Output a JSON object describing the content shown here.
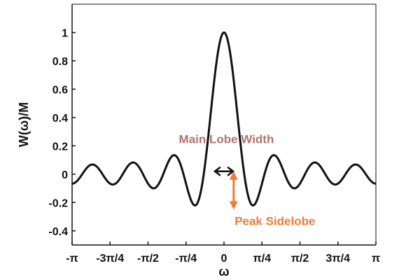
{
  "chart_data": {
    "type": "line",
    "title": "",
    "xlabel": "ω",
    "ylabel": "W(ω)/M",
    "xlim": [
      -3.14159,
      3.14159
    ],
    "ylim": [
      -0.5,
      1.2
    ],
    "x_ticks": [
      {
        "value": -3.14159,
        "label": "-π"
      },
      {
        "value": -2.35619,
        "label": "-3π/4"
      },
      {
        "value": -1.5708,
        "label": "-π/2"
      },
      {
        "value": -0.7854,
        "label": "-π/4"
      },
      {
        "value": 0,
        "label": "0"
      },
      {
        "value": 0.7854,
        "label": "π/4"
      },
      {
        "value": 1.5708,
        "label": "π/2"
      },
      {
        "value": 2.35619,
        "label": "3π/4"
      },
      {
        "value": 3.14159,
        "label": "π"
      }
    ],
    "y_ticks": [
      {
        "value": 1,
        "label": "1"
      },
      {
        "value": 0.8,
        "label": "0.8"
      },
      {
        "value": 0.6,
        "label": "0.6"
      },
      {
        "value": 0.4,
        "label": "0.4"
      },
      {
        "value": 0.2,
        "label": "0.2"
      },
      {
        "value": 0,
        "label": "0"
      },
      {
        "value": -0.2,
        "label": "-0.2"
      },
      {
        "value": -0.4,
        "label": "-0.4"
      }
    ],
    "grid": false,
    "series": [
      {
        "window_length_M": 15,
        "x": [
          -3.1416,
          -3.1,
          -3.05,
          -3.0,
          -2.95,
          -2.9,
          -2.85,
          -2.8,
          -2.75,
          -2.7,
          -2.65,
          -2.6,
          -2.55,
          -2.5,
          -2.45,
          -2.4,
          -2.35,
          -2.3,
          -2.25,
          -2.2,
          -2.15,
          -2.1,
          -2.05,
          -2.0,
          -1.95,
          -1.9,
          -1.85,
          -1.8,
          -1.75,
          -1.7,
          -1.65,
          -1.6,
          -1.55,
          -1.5,
          -1.45,
          -1.4,
          -1.35,
          -1.3,
          -1.25,
          -1.2,
          -1.15,
          -1.1,
          -1.05,
          -1.0,
          -0.95,
          -0.9,
          -0.85,
          -0.8,
          -0.75,
          -0.7,
          -0.65,
          -0.6,
          -0.55,
          -0.5,
          -0.45,
          -0.4,
          -0.35,
          -0.3,
          -0.25,
          -0.2,
          -0.15,
          -0.1,
          -0.05,
          0.0,
          0.05,
          0.1,
          0.15,
          0.2,
          0.25,
          0.3,
          0.35,
          0.4,
          0.45,
          0.5,
          0.55,
          0.6,
          0.65,
          0.7,
          0.75,
          0.8,
          0.85,
          0.9,
          0.95,
          1.0,
          1.05,
          1.1,
          1.15,
          1.2,
          1.25,
          1.3,
          1.35,
          1.4,
          1.45,
          1.5,
          1.55,
          1.6,
          1.65,
          1.7,
          1.75,
          1.8,
          1.85,
          1.9,
          1.95,
          2.0,
          2.05,
          2.1,
          2.15,
          2.2,
          2.25,
          2.3,
          2.35,
          2.4,
          2.45,
          2.5,
          2.55,
          2.6,
          2.65,
          2.7,
          2.75,
          2.8,
          2.85,
          2.9,
          2.95,
          3.0,
          3.05,
          3.1,
          3.1416
        ],
        "y": [
          0.0667,
          0.0534,
          0.0165,
          -0.0308,
          -0.0636,
          -0.0617,
          -0.0228,
          0.0335,
          0.0739,
          0.0683,
          0.0158,
          -0.0504,
          -0.0863,
          -0.0634,
          0.0043,
          0.0699,
          0.0895,
          0.046,
          -0.036,
          -0.0938,
          -0.0823,
          -0.0126,
          0.0702,
          0.1069,
          0.0667,
          -0.0216,
          -0.0969,
          -0.1049,
          -0.0361,
          0.0625,
          0.1233,
          0.0988,
          0.0009,
          -0.1001,
          -0.1388,
          -0.0777,
          0.0433,
          0.136,
          0.1331,
          0.0394,
          -0.0848,
          -0.1671,
          -0.1536,
          -0.0452,
          0.098,
          0.1939,
          0.1776,
          0.0434,
          -0.1189,
          -0.2056,
          -0.1612,
          0.0145,
          0.2383,
          0.451,
          0.6298,
          0.7691,
          0.8723,
          0.9444,
          0.989,
          1.0,
          0.989,
          0.9444,
          0.8723,
          1.0,
          0.8723,
          0.9444,
          0.989,
          1.0,
          0.989,
          0.9444,
          0.8723,
          0.7691,
          0.6298,
          0.451,
          0.2383,
          0.0145,
          -0.1612,
          -0.2056,
          -0.1189,
          0.0434,
          0.1776,
          0.1939,
          0.098,
          -0.0452,
          -0.1536,
          -0.1671,
          -0.0848,
          0.0394,
          0.1331,
          0.136,
          0.0433,
          -0.0777,
          -0.1388,
          -0.1001,
          0.0009,
          0.0988,
          0.1233,
          0.0625,
          -0.0361,
          -0.1049,
          -0.0969,
          -0.0216,
          0.0667,
          0.1069,
          0.0702,
          -0.0126,
          -0.0823,
          -0.0938,
          -0.036,
          0.046,
          0.0895,
          0.0699,
          0.0043,
          -0.0634,
          -0.0863,
          -0.0504,
          0.0158,
          0.0683,
          0.0739,
          0.0335,
          -0.0228,
          -0.0617,
          -0.0636,
          -0.0308,
          0.0165,
          0.0534,
          0.0667
        ]
      }
    ],
    "annotations": {
      "main_lobe": {
        "label": "Main Lobe Width",
        "color": "#b07468",
        "x_from": -0.19,
        "x_to": 0.19,
        "y": 0.02
      },
      "peak_sidelobe": {
        "label": "Peak Sidelobe",
        "color": "#f07a35",
        "x": 0.2,
        "y_from": 0.02,
        "y_to": -0.25
      }
    },
    "line_color": "#111111"
  }
}
